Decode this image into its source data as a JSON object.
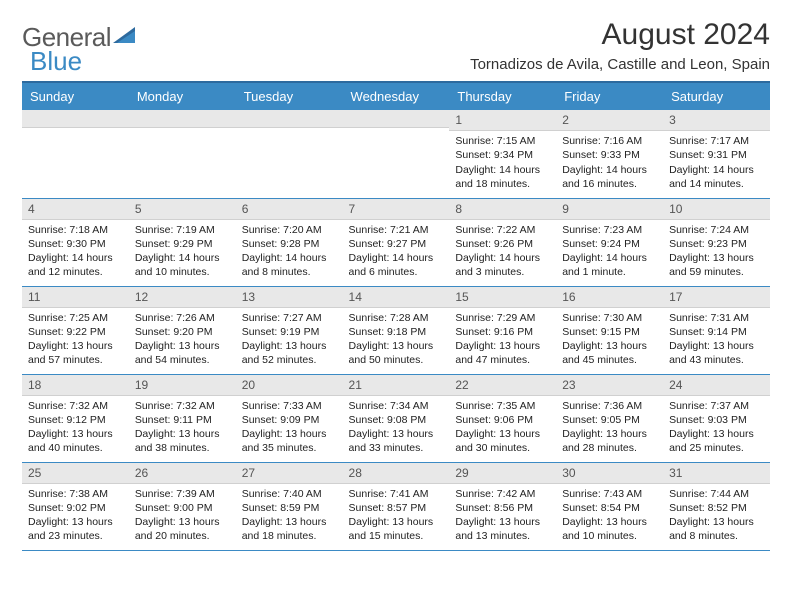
{
  "logo": {
    "text1": "General",
    "text2": "Blue"
  },
  "title": "August 2024",
  "location": "Tornadizos de Avila, Castille and Leon, Spain",
  "colors": {
    "header_bg": "#3b8ac4",
    "header_border": "#2d6a9e",
    "daynum_bg": "#e8e8e8",
    "row_divider": "#3b8ac4",
    "text": "#222222",
    "logo_gray": "#5a5a5a",
    "logo_blue": "#3b8ac4"
  },
  "typography": {
    "title_fontsize": 30,
    "location_fontsize": 15,
    "header_fontsize": 13,
    "daynum_fontsize": 12,
    "cell_fontsize": 10.5,
    "logo_fontsize": 26
  },
  "columns": [
    "Sunday",
    "Monday",
    "Tuesday",
    "Wednesday",
    "Thursday",
    "Friday",
    "Saturday"
  ],
  "leading_blank": 4,
  "days": [
    {
      "n": 1,
      "sr": "7:15 AM",
      "ss": "9:34 PM",
      "dl": "14 hours and 18 minutes."
    },
    {
      "n": 2,
      "sr": "7:16 AM",
      "ss": "9:33 PM",
      "dl": "14 hours and 16 minutes."
    },
    {
      "n": 3,
      "sr": "7:17 AM",
      "ss": "9:31 PM",
      "dl": "14 hours and 14 minutes."
    },
    {
      "n": 4,
      "sr": "7:18 AM",
      "ss": "9:30 PM",
      "dl": "14 hours and 12 minutes."
    },
    {
      "n": 5,
      "sr": "7:19 AM",
      "ss": "9:29 PM",
      "dl": "14 hours and 10 minutes."
    },
    {
      "n": 6,
      "sr": "7:20 AM",
      "ss": "9:28 PM",
      "dl": "14 hours and 8 minutes."
    },
    {
      "n": 7,
      "sr": "7:21 AM",
      "ss": "9:27 PM",
      "dl": "14 hours and 6 minutes."
    },
    {
      "n": 8,
      "sr": "7:22 AM",
      "ss": "9:26 PM",
      "dl": "14 hours and 3 minutes."
    },
    {
      "n": 9,
      "sr": "7:23 AM",
      "ss": "9:24 PM",
      "dl": "14 hours and 1 minute."
    },
    {
      "n": 10,
      "sr": "7:24 AM",
      "ss": "9:23 PM",
      "dl": "13 hours and 59 minutes."
    },
    {
      "n": 11,
      "sr": "7:25 AM",
      "ss": "9:22 PM",
      "dl": "13 hours and 57 minutes."
    },
    {
      "n": 12,
      "sr": "7:26 AM",
      "ss": "9:20 PM",
      "dl": "13 hours and 54 minutes."
    },
    {
      "n": 13,
      "sr": "7:27 AM",
      "ss": "9:19 PM",
      "dl": "13 hours and 52 minutes."
    },
    {
      "n": 14,
      "sr": "7:28 AM",
      "ss": "9:18 PM",
      "dl": "13 hours and 50 minutes."
    },
    {
      "n": 15,
      "sr": "7:29 AM",
      "ss": "9:16 PM",
      "dl": "13 hours and 47 minutes."
    },
    {
      "n": 16,
      "sr": "7:30 AM",
      "ss": "9:15 PM",
      "dl": "13 hours and 45 minutes."
    },
    {
      "n": 17,
      "sr": "7:31 AM",
      "ss": "9:14 PM",
      "dl": "13 hours and 43 minutes."
    },
    {
      "n": 18,
      "sr": "7:32 AM",
      "ss": "9:12 PM",
      "dl": "13 hours and 40 minutes."
    },
    {
      "n": 19,
      "sr": "7:32 AM",
      "ss": "9:11 PM",
      "dl": "13 hours and 38 minutes."
    },
    {
      "n": 20,
      "sr": "7:33 AM",
      "ss": "9:09 PM",
      "dl": "13 hours and 35 minutes."
    },
    {
      "n": 21,
      "sr": "7:34 AM",
      "ss": "9:08 PM",
      "dl": "13 hours and 33 minutes."
    },
    {
      "n": 22,
      "sr": "7:35 AM",
      "ss": "9:06 PM",
      "dl": "13 hours and 30 minutes."
    },
    {
      "n": 23,
      "sr": "7:36 AM",
      "ss": "9:05 PM",
      "dl": "13 hours and 28 minutes."
    },
    {
      "n": 24,
      "sr": "7:37 AM",
      "ss": "9:03 PM",
      "dl": "13 hours and 25 minutes."
    },
    {
      "n": 25,
      "sr": "7:38 AM",
      "ss": "9:02 PM",
      "dl": "13 hours and 23 minutes."
    },
    {
      "n": 26,
      "sr": "7:39 AM",
      "ss": "9:00 PM",
      "dl": "13 hours and 20 minutes."
    },
    {
      "n": 27,
      "sr": "7:40 AM",
      "ss": "8:59 PM",
      "dl": "13 hours and 18 minutes."
    },
    {
      "n": 28,
      "sr": "7:41 AM",
      "ss": "8:57 PM",
      "dl": "13 hours and 15 minutes."
    },
    {
      "n": 29,
      "sr": "7:42 AM",
      "ss": "8:56 PM",
      "dl": "13 hours and 13 minutes."
    },
    {
      "n": 30,
      "sr": "7:43 AM",
      "ss": "8:54 PM",
      "dl": "13 hours and 10 minutes."
    },
    {
      "n": 31,
      "sr": "7:44 AM",
      "ss": "8:52 PM",
      "dl": "13 hours and 8 minutes."
    }
  ],
  "labels": {
    "sunrise": "Sunrise:",
    "sunset": "Sunset:",
    "daylight": "Daylight:"
  }
}
